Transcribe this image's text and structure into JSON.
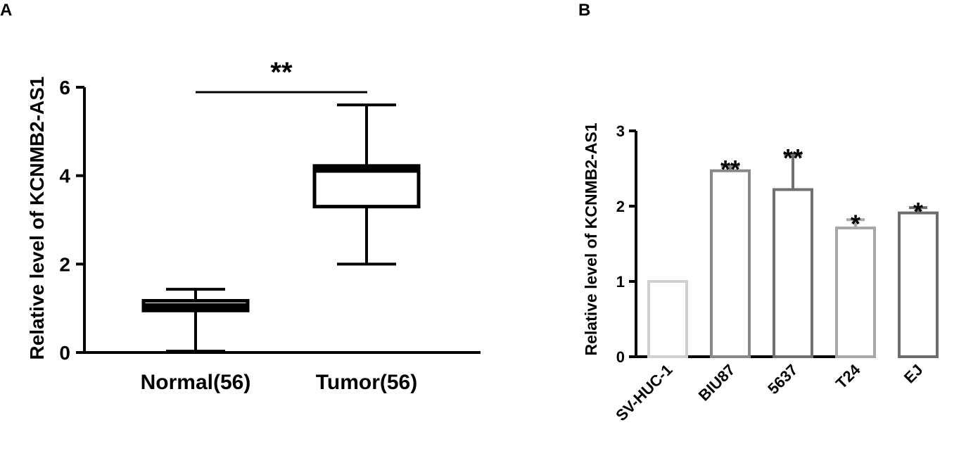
{
  "chart_data": [
    {
      "panel": "A",
      "type": "box",
      "ylabel": "Relative level of KCNMB2-AS1",
      "ylim": [
        0,
        6
      ],
      "yticks": [
        "0",
        "2",
        "4",
        "6"
      ],
      "categories": [
        "Normal(56)",
        "Tumor(56)"
      ],
      "boxes": [
        {
          "min": 0.03,
          "q1": 0.95,
          "median": 1.05,
          "q3": 1.17,
          "max": 1.43
        },
        {
          "min": 2.0,
          "q1": 3.3,
          "median": 4.13,
          "q3": 4.22,
          "max": 5.6
        }
      ],
      "significance": "**"
    },
    {
      "panel": "B",
      "type": "bar",
      "ylabel": "Relative level of KCNMB2-AS1",
      "ylim": [
        0,
        3
      ],
      "yticks": [
        "0",
        "1",
        "2",
        "3"
      ],
      "categories": [
        "SV-HUC-1",
        "BIU87",
        "5637",
        "T24",
        "EJ"
      ],
      "values": [
        1.0,
        2.47,
        2.22,
        1.71,
        1.91
      ],
      "errors": [
        0,
        0.07,
        0.47,
        0.11,
        0.07
      ],
      "significance": [
        "",
        "**",
        "**",
        "*",
        "*"
      ],
      "colors": [
        "#d0d0d0",
        "#888888",
        "#707070",
        "#a8a8a8",
        "#6c6c6c"
      ]
    }
  ]
}
